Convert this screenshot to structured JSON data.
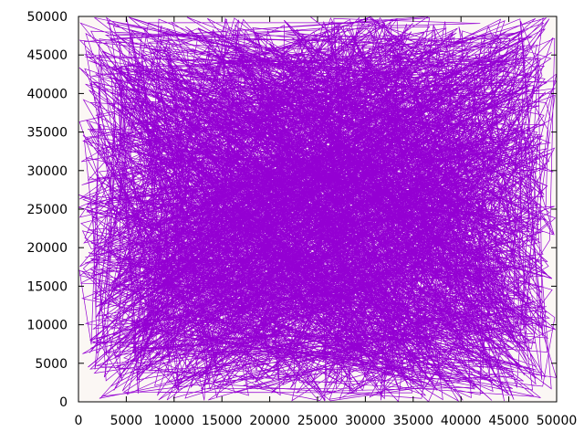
{
  "chart_data": {
    "type": "line",
    "title": "",
    "xlabel": "",
    "ylabel": "",
    "xlim": [
      0,
      50000
    ],
    "ylim": [
      0,
      50000
    ],
    "xticks": [
      0,
      5000,
      10000,
      15000,
      20000,
      25000,
      30000,
      35000,
      40000,
      45000,
      50000
    ],
    "yticks": [
      0,
      5000,
      10000,
      15000,
      20000,
      25000,
      30000,
      35000,
      40000,
      45000,
      50000
    ],
    "xtick_labels": [
      "0",
      "5000",
      "10000",
      "15000",
      "20000",
      "25000",
      "30000",
      "35000",
      "40000",
      "45000",
      "50000"
    ],
    "ytick_labels": [
      "0",
      "5000",
      "10000",
      "15000",
      "20000",
      "25000",
      "30000",
      "35000",
      "40000",
      "45000",
      "50000"
    ],
    "grid": false,
    "legend": "none",
    "plot_background": "#fbf7f4",
    "series": [
      {
        "color": "#9400d3",
        "description_of_pattern": "dense random tour path connecting points uniformly distributed in [0,50000] x [0,50000]",
        "x": [
          1000,
          34000,
          12000,
          46000,
          5000,
          28000,
          41000,
          9000,
          22000,
          47000,
          3000,
          36000,
          17000,
          44000,
          8000,
          31000,
          49000,
          14000,
          26000,
          39000,
          2000,
          33000,
          19000,
          48000,
          11000,
          24000,
          43000,
          6000,
          37000,
          21000,
          45000,
          4000,
          29000,
          16000,
          40000,
          10000,
          35000,
          23000,
          49500,
          7000,
          32000,
          18000,
          42000,
          13000,
          27000,
          46500,
          1500,
          38000,
          20000,
          44500,
          9500,
          30000,
          15000,
          41500,
          5500,
          25000,
          47500,
          12500,
          36500,
          22500,
          3500,
          33500,
          18500,
          43500,
          8500,
          28500,
          48500,
          14500,
          39500,
          24500,
          2500,
          31500,
          17500,
          45500,
          10500,
          34500,
          21500,
          49000,
          6500,
          27500,
          40500,
          13500,
          37500,
          19500,
          46000,
          4500,
          30500,
          16500,
          42500,
          11500,
          35500,
          23500,
          47000,
          7500,
          26500,
          44000,
          1200,
          38500,
          20500,
          48000
        ],
        "y": [
          4500,
          38000,
          22000,
          46000,
          12000,
          30000,
          8000,
          41000,
          17000,
          33000,
          26000,
          2000,
          44000,
          14000,
          36000,
          6000,
          28000,
          48000,
          10000,
          39000,
          20000,
          3500,
          42000,
          24000,
          15000,
          47000,
          9000,
          31000,
          19000,
          45000,
          1000,
          35000,
          27000,
          11000,
          43000,
          23000,
          5000,
          40000,
          16000,
          32000,
          49000,
          7000,
          25000,
          37000,
          13000,
          29000,
          41500,
          3000,
          46500,
          18000,
          34000,
          8500,
          44500,
          21000,
          39500,
          11500,
          27500,
          48500,
          6500,
          35500,
          15500,
          42500,
          2500,
          30500,
          23500,
          47500,
          9500,
          37500,
          19500,
          33500,
          45500,
          4000,
          26500,
          40500,
          12500,
          29500,
          49500,
          16500,
          36500,
          7500,
          24500,
          43500,
          1500,
          31500,
          21500,
          38500,
          10500,
          46000,
          18500,
          34500,
          5500,
          28000,
          41000,
          14000,
          32500,
          22500,
          8000,
          44000,
          17000,
          36000
        ]
      }
    ]
  }
}
